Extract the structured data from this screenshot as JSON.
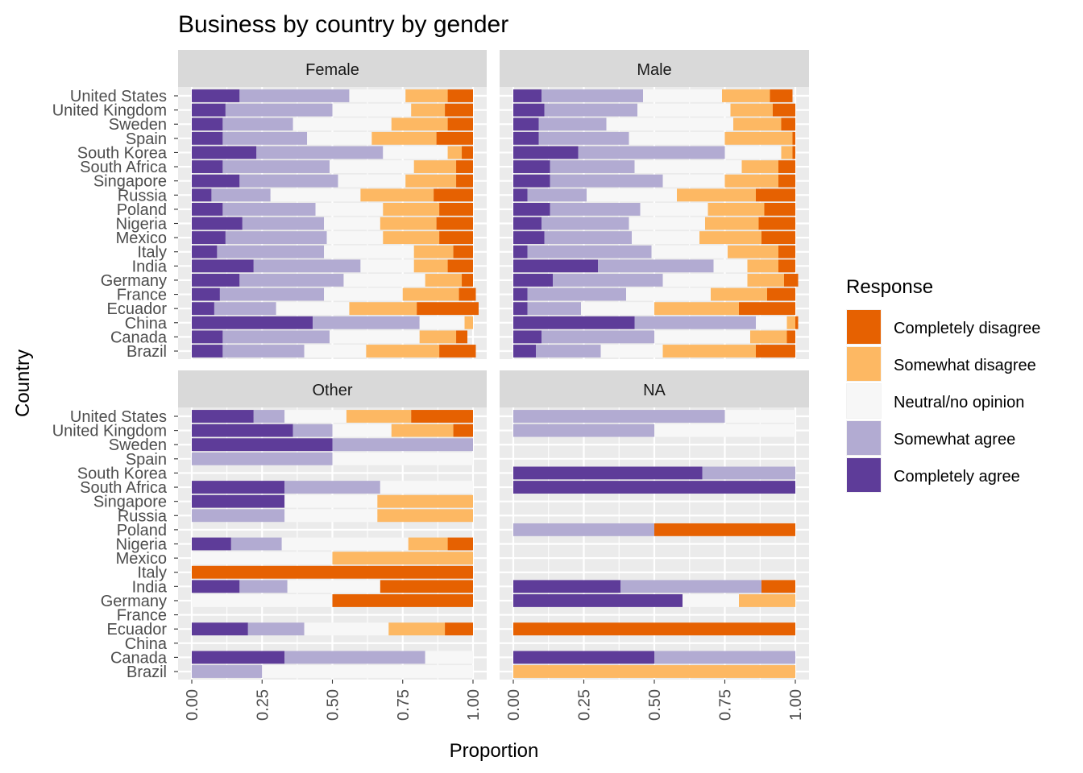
{
  "chart_data": {
    "type": "bar",
    "orientation": "horizontal",
    "stacked": true,
    "title": "Business by country by gender",
    "xlabel": "Proportion",
    "ylabel": "Country",
    "xlim": [
      0,
      1
    ],
    "x_ticks": [
      "0.00",
      "0.25",
      "0.50",
      "0.75",
      "1.00"
    ],
    "x_tick_values": [
      0,
      0.25,
      0.5,
      0.75,
      1
    ],
    "grid": true,
    "legend_placement": "right",
    "legend_title": "Response",
    "categories": [
      "Brazil",
      "Canada",
      "China",
      "Ecuador",
      "France",
      "Germany",
      "India",
      "Italy",
      "Mexico",
      "Nigeria",
      "Poland",
      "Russia",
      "Singapore",
      "South Africa",
      "South Korea",
      "Spain",
      "Sweden",
      "United Kingdom",
      "United States"
    ],
    "responses": [
      "Completely disagree",
      "Somewhat disagree",
      "Neutral/no opinion",
      "Somewhat agree",
      "Completely agree"
    ],
    "colors": {
      "Completely disagree": "#e66101",
      "Somewhat disagree": "#fdb863",
      "Neutral/no opinion": "#f7f7f7",
      "Somewhat agree": "#b2abd2",
      "Completely agree": "#5e3c99"
    },
    "panel_background": "#ebebeb",
    "strip_background": "#d9d9d9",
    "stack_order_note": "segment values listed as [Completely agree, Somewhat agree, Neutral/no opinion, Somewhat disagree, Completely disagree]",
    "panels": [
      {
        "name": "Female",
        "rows": {
          "Brazil": [
            0.11,
            0.29,
            0.22,
            0.26,
            0.13
          ],
          "Canada": [
            0.11,
            0.38,
            0.32,
            0.13,
            0.04
          ],
          "China": [
            0.43,
            0.38,
            0.16,
            0.03,
            0.0
          ],
          "Ecuador": [
            0.08,
            0.22,
            0.26,
            0.24,
            0.22
          ],
          "France": [
            0.1,
            0.37,
            0.28,
            0.2,
            0.06
          ],
          "Germany": [
            0.17,
            0.37,
            0.29,
            0.13,
            0.04
          ],
          "India": [
            0.22,
            0.38,
            0.19,
            0.12,
            0.09
          ],
          "Italy": [
            0.09,
            0.38,
            0.32,
            0.14,
            0.07
          ],
          "Mexico": [
            0.12,
            0.36,
            0.2,
            0.2,
            0.12
          ],
          "Nigeria": [
            0.18,
            0.29,
            0.2,
            0.2,
            0.13
          ],
          "Poland": [
            0.11,
            0.33,
            0.24,
            0.2,
            0.12
          ],
          "Russia": [
            0.07,
            0.21,
            0.32,
            0.26,
            0.14
          ],
          "Singapore": [
            0.17,
            0.35,
            0.24,
            0.18,
            0.06
          ],
          "South Africa": [
            0.11,
            0.38,
            0.3,
            0.15,
            0.06
          ],
          "South Korea": [
            0.23,
            0.45,
            0.23,
            0.05,
            0.04
          ],
          "Spain": [
            0.11,
            0.3,
            0.23,
            0.23,
            0.13
          ],
          "Sweden": [
            0.11,
            0.25,
            0.35,
            0.2,
            0.09
          ],
          "United Kingdom": [
            0.12,
            0.38,
            0.28,
            0.12,
            0.1
          ],
          "United States": [
            0.17,
            0.39,
            0.2,
            0.15,
            0.09
          ]
        }
      },
      {
        "name": "Male",
        "rows": {
          "Brazil": [
            0.08,
            0.23,
            0.22,
            0.33,
            0.14
          ],
          "Canada": [
            0.1,
            0.4,
            0.34,
            0.13,
            0.03
          ],
          "China": [
            0.43,
            0.43,
            0.11,
            0.03,
            0.01
          ],
          "Ecuador": [
            0.05,
            0.19,
            0.26,
            0.3,
            0.2
          ],
          "France": [
            0.05,
            0.35,
            0.3,
            0.2,
            0.1
          ],
          "Germany": [
            0.14,
            0.39,
            0.3,
            0.13,
            0.05
          ],
          "India": [
            0.3,
            0.41,
            0.12,
            0.11,
            0.06
          ],
          "Italy": [
            0.05,
            0.44,
            0.27,
            0.18,
            0.06
          ],
          "Mexico": [
            0.11,
            0.31,
            0.24,
            0.22,
            0.12
          ],
          "Nigeria": [
            0.1,
            0.31,
            0.27,
            0.19,
            0.13
          ],
          "Poland": [
            0.13,
            0.32,
            0.24,
            0.2,
            0.11
          ],
          "Russia": [
            0.05,
            0.21,
            0.32,
            0.28,
            0.14
          ],
          "Singapore": [
            0.13,
            0.4,
            0.22,
            0.19,
            0.06
          ],
          "South Africa": [
            0.13,
            0.3,
            0.38,
            0.13,
            0.06
          ],
          "South Korea": [
            0.23,
            0.52,
            0.2,
            0.04,
            0.01
          ],
          "Spain": [
            0.09,
            0.32,
            0.34,
            0.24,
            0.01
          ],
          "Sweden": [
            0.09,
            0.24,
            0.45,
            0.17,
            0.05
          ],
          "United Kingdom": [
            0.11,
            0.33,
            0.33,
            0.15,
            0.08
          ],
          "United States": [
            0.1,
            0.36,
            0.28,
            0.17,
            0.08
          ]
        }
      },
      {
        "name": "Other",
        "rows": {
          "Brazil": [
            0.0,
            0.25,
            0.75,
            0.0,
            0.0
          ],
          "Canada": [
            0.33,
            0.5,
            0.17,
            0.0,
            0.0
          ],
          "China": [
            0.0,
            0.0,
            0.0,
            0.0,
            0.0
          ],
          "Ecuador": [
            0.2,
            0.2,
            0.3,
            0.2,
            0.1
          ],
          "France": [
            0.0,
            0.0,
            0.0,
            0.0,
            0.0
          ],
          "Germany": [
            0.0,
            0.0,
            0.5,
            0.0,
            0.5
          ],
          "India": [
            0.17,
            0.17,
            0.33,
            0.0,
            0.33
          ],
          "Italy": [
            0.0,
            0.0,
            0.0,
            0.0,
            1.0
          ],
          "Mexico": [
            0.0,
            0.0,
            0.5,
            0.5,
            0.0
          ],
          "Nigeria": [
            0.14,
            0.18,
            0.45,
            0.14,
            0.09
          ],
          "Poland": [
            0.0,
            0.0,
            0.0,
            0.0,
            0.0
          ],
          "Russia": [
            0.0,
            0.33,
            0.33,
            0.34,
            0.0
          ],
          "Singapore": [
            0.33,
            0.0,
            0.33,
            0.34,
            0.0
          ],
          "South Africa": [
            0.33,
            0.34,
            0.33,
            0.0,
            0.0
          ],
          "South Korea": [
            0.0,
            0.0,
            0.0,
            0.0,
            0.0
          ],
          "Spain": [
            0.0,
            0.5,
            0.5,
            0.0,
            0.0
          ],
          "Sweden": [
            0.5,
            0.5,
            0.0,
            0.0,
            0.0
          ],
          "United Kingdom": [
            0.36,
            0.14,
            0.21,
            0.22,
            0.07
          ],
          "United States": [
            0.22,
            0.11,
            0.22,
            0.23,
            0.22
          ]
        }
      },
      {
        "name": "NA",
        "rows": {
          "Brazil": [
            0.0,
            0.0,
            0.0,
            1.0,
            0.0
          ],
          "Canada": [
            0.5,
            0.5,
            0.0,
            0.0,
            0.0
          ],
          "China": [
            0.0,
            0.0,
            0.0,
            0.0,
            0.0
          ],
          "Ecuador": [
            0.0,
            0.0,
            0.0,
            0.0,
            1.0
          ],
          "France": [
            0.0,
            0.0,
            0.0,
            0.0,
            0.0
          ],
          "Germany": [
            0.6,
            0.0,
            0.2,
            0.2,
            0.0
          ],
          "India": [
            0.38,
            0.5,
            0.0,
            0.0,
            0.12
          ],
          "Italy": [
            0.0,
            0.0,
            0.0,
            0.0,
            0.0
          ],
          "Mexico": [
            0.0,
            0.0,
            0.0,
            0.0,
            0.0
          ],
          "Nigeria": [
            0.0,
            0.0,
            0.0,
            0.0,
            0.0
          ],
          "Poland": [
            0.0,
            0.5,
            0.0,
            0.0,
            0.5
          ],
          "Russia": [
            0.0,
            0.0,
            0.0,
            0.0,
            0.0
          ],
          "Singapore": [
            0.0,
            0.0,
            0.0,
            0.0,
            0.0
          ],
          "South Africa": [
            1.0,
            0.0,
            0.0,
            0.0,
            0.0
          ],
          "South Korea": [
            0.67,
            0.33,
            0.0,
            0.0,
            0.0
          ],
          "Spain": [
            0.0,
            0.0,
            0.0,
            0.0,
            0.0
          ],
          "Sweden": [
            0.0,
            0.0,
            0.0,
            0.0,
            0.0
          ],
          "United Kingdom": [
            0.0,
            0.5,
            0.5,
            0.0,
            0.0
          ],
          "United States": [
            0.0,
            0.75,
            0.25,
            0.0,
            0.0
          ]
        }
      }
    ]
  }
}
